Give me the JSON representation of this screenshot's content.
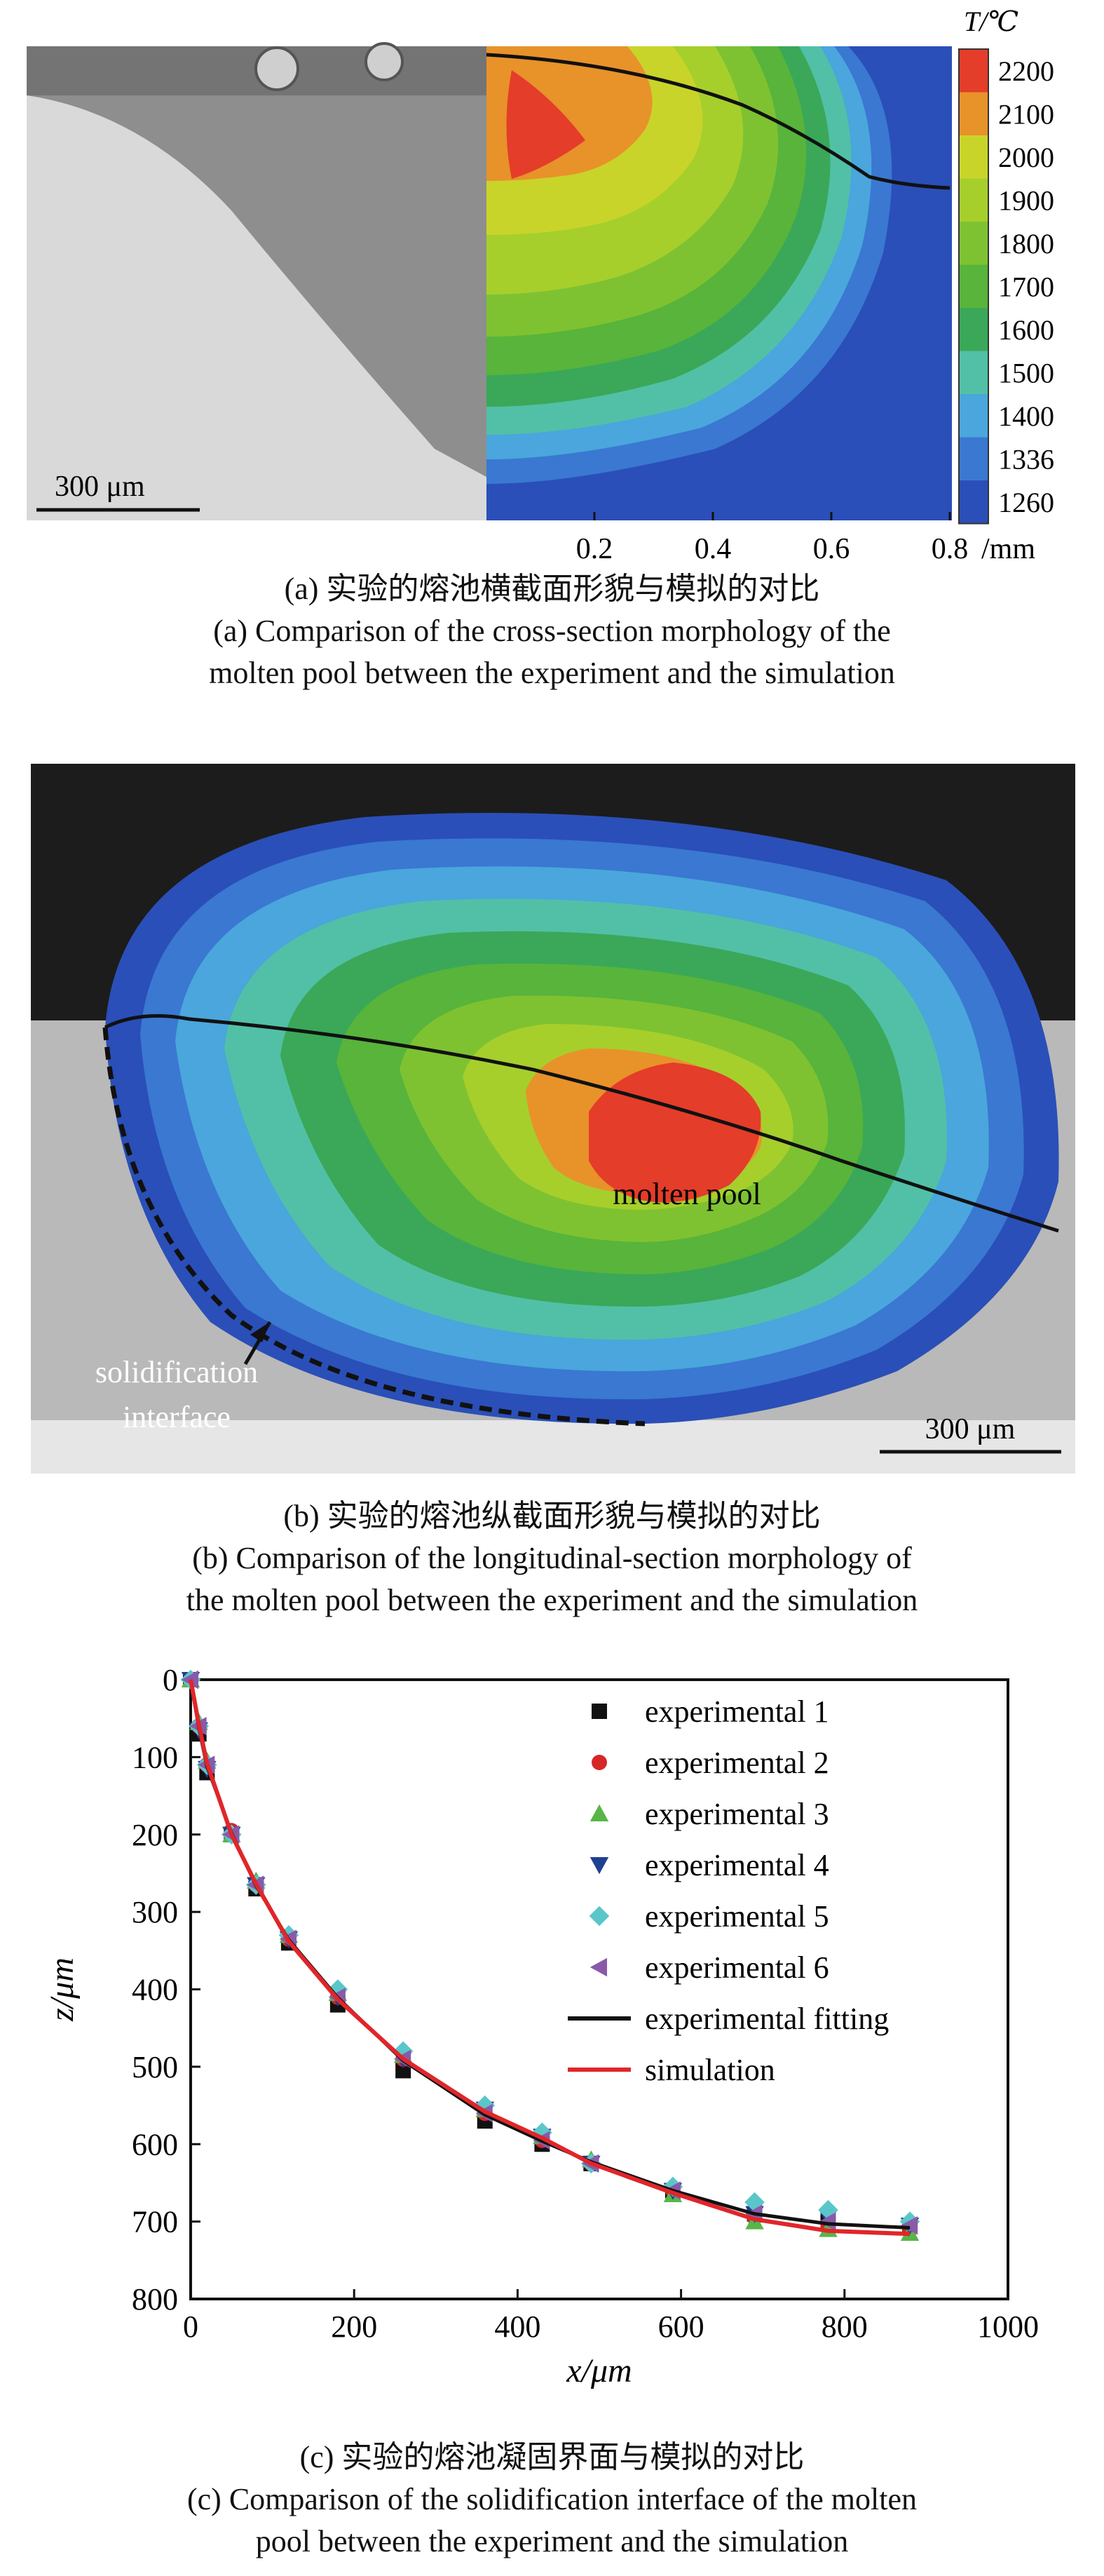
{
  "panel_a": {
    "scale_bar_label": "300 μm",
    "colorbar_title": "T/℃",
    "colorbar_levels": [
      "2200",
      "2100",
      "2000",
      "1900",
      "1800",
      "1700",
      "1600",
      "1500",
      "1400",
      "1336",
      "1260"
    ],
    "colorbar_colors": [
      "#e43d2a",
      "#e8922a",
      "#c9d42a",
      "#a6cf2c",
      "#7ec232",
      "#58b43a",
      "#3aa858",
      "#52c0a6",
      "#4aa6dc",
      "#3a78d2",
      "#2a4fb8"
    ],
    "x_ticks": [
      "0.2",
      "0.4",
      "0.6",
      "0.8"
    ],
    "x_unit": "/mm",
    "caption_cn": "(a) 实验的熔池横截面形貌与模拟的对比",
    "caption_en_1": "(a) Comparison of the cross-section morphology of the",
    "caption_en_2": "molten pool between the experiment and the simulation"
  },
  "panel_b": {
    "molten_pool_label": "molten pool",
    "solid_label_1": "solidification",
    "solid_label_2": "interface",
    "scale_bar_label": "300 μm",
    "caption_cn": "(b) 实验的熔池纵截面形貌与模拟的对比",
    "caption_en_1": "(b) Comparison of the longitudinal-section morphology of",
    "caption_en_2": "the molten pool between the experiment and the simulation"
  },
  "panel_c": {
    "caption_cn": "(c) 实验的熔池凝固界面与模拟的对比",
    "caption_en_1": "(c) Comparison of the solidification interface of the molten",
    "caption_en_2": "pool between the experiment and the simulation"
  },
  "chart_data": {
    "type": "scatter",
    "xlabel": "x/μm",
    "ylabel": "z/μm",
    "xlim": [
      0,
      1000
    ],
    "ylim": [
      0,
      800
    ],
    "y_inverted": true,
    "x_ticks": [
      0,
      200,
      400,
      600,
      800,
      1000
    ],
    "y_ticks": [
      0,
      100,
      200,
      300,
      400,
      500,
      600,
      700,
      800
    ],
    "legend_position": "top-right",
    "x": [
      0,
      10,
      20,
      50,
      80,
      120,
      180,
      260,
      360,
      430,
      490,
      590,
      690,
      780,
      880
    ],
    "series": [
      {
        "name": "experimental 1",
        "marker": "square",
        "color": "#111111",
        "values": [
          0,
          70,
          120,
          200,
          270,
          340,
          420,
          505,
          570,
          600,
          625,
          660,
          690,
          700,
          705
        ]
      },
      {
        "name": "experimental 2",
        "marker": "circle",
        "color": "#d62728",
        "values": [
          0,
          60,
          110,
          195,
          265,
          335,
          410,
          490,
          560,
          595,
          625,
          660,
          695,
          705,
          710
        ]
      },
      {
        "name": "experimental 3",
        "marker": "triangle-up",
        "color": "#59b548",
        "values": [
          0,
          55,
          105,
          200,
          260,
          330,
          405,
          485,
          555,
          590,
          620,
          665,
          700,
          710,
          715
        ]
      },
      {
        "name": "experimental 4",
        "marker": "triangle-down",
        "color": "#1f3f93",
        "values": [
          0,
          65,
          115,
          200,
          265,
          335,
          410,
          490,
          555,
          590,
          625,
          660,
          690,
          695,
          705
        ]
      },
      {
        "name": "experimental 5",
        "marker": "diamond",
        "color": "#5bc6c9",
        "values": [
          0,
          60,
          110,
          200,
          265,
          330,
          400,
          480,
          550,
          585,
          625,
          655,
          675,
          685,
          700
        ]
      },
      {
        "name": "experimental 6",
        "marker": "triangle-left",
        "color": "#8a5aa8",
        "values": [
          0,
          60,
          110,
          200,
          265,
          335,
          410,
          490,
          560,
          595,
          625,
          660,
          690,
          700,
          705
        ]
      },
      {
        "name": "experimental fitting",
        "marker": "line",
        "color": "#111111",
        "values": [
          0,
          62,
          112,
          198,
          266,
          336,
          411,
          492,
          562,
          596,
          623,
          660,
          690,
          703,
          708
        ]
      },
      {
        "name": "simulation",
        "marker": "line",
        "color": "#e0262a",
        "values": [
          0,
          58,
          108,
          200,
          264,
          338,
          413,
          490,
          558,
          592,
          625,
          663,
          697,
          712,
          716
        ]
      }
    ]
  }
}
